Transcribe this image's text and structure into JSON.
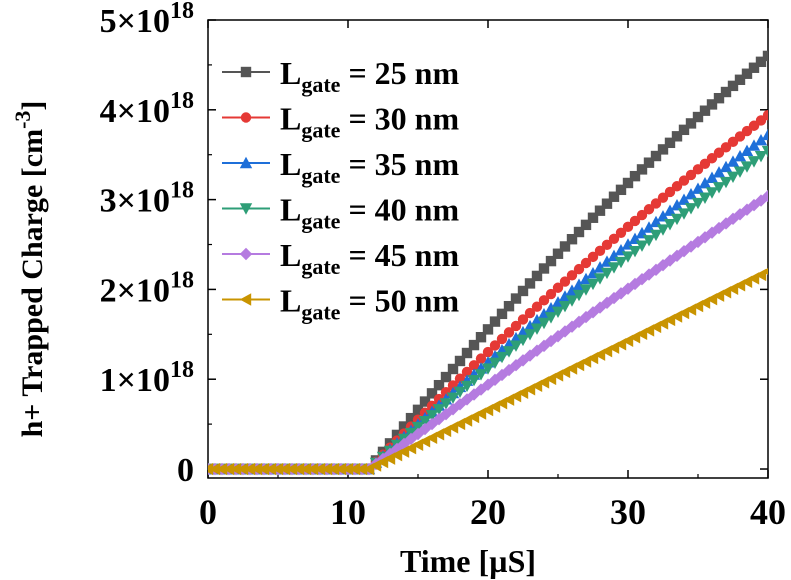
{
  "chart_data": {
    "type": "scatter",
    "title": "",
    "xlabel": "Time [µS]",
    "ylabel": "h+ Trapped Charge [cm⁻³]",
    "xlim": [
      0,
      40
    ],
    "ylim": [
      -1e+17,
      5e+18
    ],
    "x_ticks": [
      0,
      10,
      20,
      30,
      40
    ],
    "x_tick_labels": [
      "0",
      "10",
      "20",
      "30",
      "40"
    ],
    "y_ticks": [
      0,
      1e+18,
      2e+18,
      3e+18,
      4e+18,
      5e+18
    ],
    "y_tick_labels": [
      "0",
      "1×10",
      "2×10",
      "3×10",
      "4×10",
      "5×10"
    ],
    "y_tick_exponent": "18",
    "legend_position": "top-left",
    "grid": false,
    "onset_time": 11.5,
    "x_step": 0.5,
    "series": [
      {
        "name": "L",
        "subscript": "gate",
        "suffix": " = 25 nm",
        "marker": "square",
        "color": "#555555",
        "slope_per_us_1e18": 0.214,
        "curvature": 0.0012,
        "final_value": 4.6e+18
      },
      {
        "name": "L",
        "subscript": "gate",
        "suffix": " = 30 nm",
        "marker": "circle",
        "color": "#e53935",
        "slope_per_us_1e18": 0.17,
        "curvature": 0.0008,
        "final_value": 3.94e+18
      },
      {
        "name": "L",
        "subscript": "gate",
        "suffix": " = 35 nm",
        "marker": "triangle-up",
        "color": "#1e6fd9",
        "slope_per_us_1e18": 0.155,
        "curvature": 0.0005,
        "final_value": 3.72e+18
      },
      {
        "name": "L",
        "subscript": "gate",
        "suffix": " = 40 nm",
        "marker": "triangle-down",
        "color": "#2e9e77",
        "slope_per_us_1e18": 0.147,
        "curvature": 0.0004,
        "final_value": 3.54e+18
      },
      {
        "name": "L",
        "subscript": "gate",
        "suffix": " = 45 nm",
        "marker": "diamond",
        "color": "#b57be0",
        "slope_per_us_1e18": 0.118,
        "curvature": 0.0002,
        "final_value": 3.04e+18
      },
      {
        "name": "L",
        "subscript": "gate",
        "suffix": " = 50 nm",
        "marker": "triangle-left",
        "color": "#c99400",
        "slope_per_us_1e18": 0.079,
        "curvature": 0.0,
        "final_value": 2.2e+18
      }
    ]
  }
}
